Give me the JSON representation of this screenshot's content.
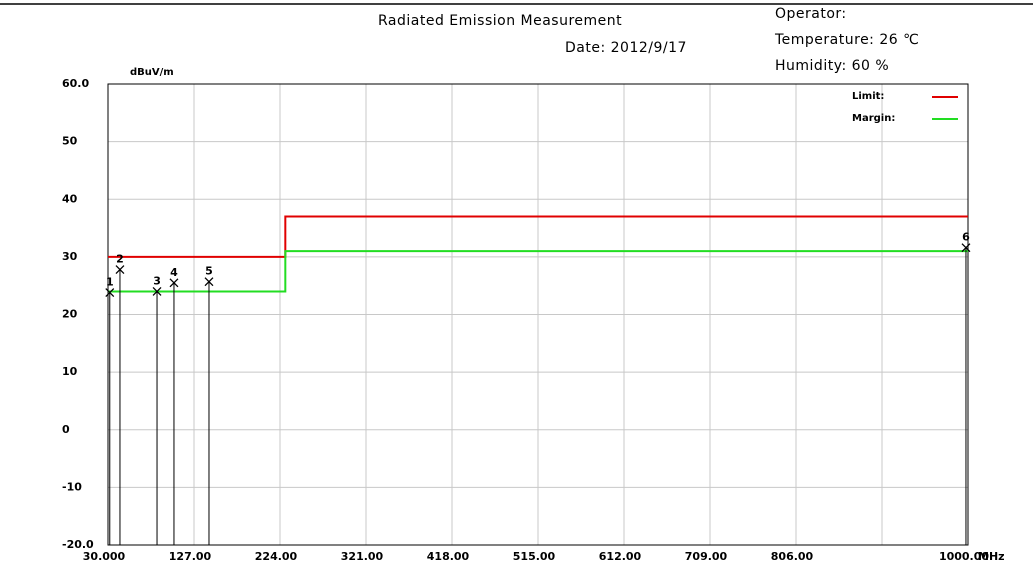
{
  "chart_data": {
    "type": "line",
    "title": "Radiated Emission Measurement",
    "date": "Date: 2012/9/17",
    "operator": "Operator:",
    "temperature": "Temperature:  26 ℃",
    "humidity": "Humidity:  60 %",
    "ylabel": "dBuV/m",
    "xlabel": "MHz",
    "xlim": [
      30,
      1000
    ],
    "ylim": [
      -20,
      60
    ],
    "xticks": [
      {
        "value": 30,
        "label": "30.000"
      },
      {
        "value": 127,
        "label": "127.00"
      },
      {
        "value": 224,
        "label": "224.00"
      },
      {
        "value": 321,
        "label": "321.00"
      },
      {
        "value": 418,
        "label": "418.00"
      },
      {
        "value": 515,
        "label": "515.00"
      },
      {
        "value": 612,
        "label": "612.00"
      },
      {
        "value": 709,
        "label": "709.00"
      },
      {
        "value": 806,
        "label": "806.00"
      },
      {
        "value": 903,
        "label": null
      },
      {
        "value": 1000,
        "label": "1000.00"
      }
    ],
    "yticks": [
      {
        "value": 60,
        "label": "60.0"
      },
      50,
      40,
      30,
      20,
      10,
      0,
      -10,
      {
        "value": -20,
        "label": "-20.0"
      }
    ],
    "grid": true,
    "legend": "top-right",
    "series": [
      {
        "name": "Limit:",
        "color": "#e00000",
        "x": [
          30,
          230,
          230,
          1000
        ],
        "values": [
          30,
          30,
          37,
          37
        ]
      },
      {
        "name": "Margin:",
        "color": "#22dd22",
        "x": [
          30,
          230,
          230,
          1000
        ],
        "values": [
          24,
          24,
          31,
          31
        ]
      }
    ],
    "markers": {
      "labels": [
        "1",
        "2",
        "3",
        "4",
        "5",
        "6"
      ],
      "x": [
        32,
        43.5,
        85.3,
        104.4,
        143.9,
        997.7
      ],
      "values": [
        23.8,
        27.8,
        24,
        25.5,
        25.7,
        31.6
      ]
    }
  }
}
